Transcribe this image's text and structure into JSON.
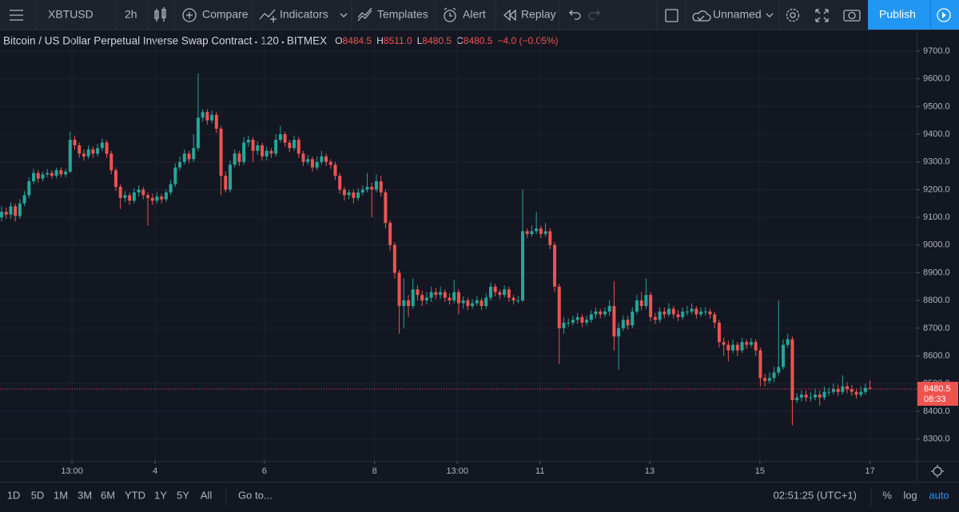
{
  "toolbar": {
    "symbol": "XBTUSD",
    "interval": "2h",
    "compare": "Compare",
    "indicators": "Indicators",
    "templates": "Templates",
    "alert": "Alert",
    "replay": "Replay",
    "layout_name": "Unnamed",
    "publish": "Publish"
  },
  "legend": {
    "name": "Bitcoin / US Dollar Perpetual Inverse Swap Contract",
    "interval": "120",
    "exchange": "BITMEX",
    "ohlc": [
      {
        "letter": "O",
        "value": "8484.5"
      },
      {
        "letter": "H",
        "value": "8511.0"
      },
      {
        "letter": "L",
        "value": "8480.5"
      },
      {
        "letter": "C",
        "value": "8480.5"
      }
    ],
    "change": "−4.0 (−0.05%)"
  },
  "chart_data": {
    "type": "candlestick",
    "up_color": "#26a69a",
    "down_color": "#ef5350",
    "grid": true,
    "open": [
      9100,
      9120,
      9110,
      9140,
      9105,
      9150,
      9180,
      9230,
      9260,
      9240,
      9255,
      9260,
      9250,
      9270,
      9255,
      9265,
      9380,
      9360,
      9330,
      9320,
      9345,
      9330,
      9350,
      9370,
      9330,
      9270,
      9210,
      9170,
      9180,
      9160,
      9190,
      9200,
      9180,
      9170,
      9160,
      9175,
      9165,
      9190,
      9220,
      9280,
      9300,
      9330,
      9310,
      9350,
      9460,
      9480,
      9450,
      9470,
      9420,
      9250,
      9200,
      9290,
      9330,
      9300,
      9370,
      9380,
      9340,
      9360,
      9320,
      9340,
      9330,
      9380,
      9400,
      9370,
      9350,
      9380,
      9330,
      9300,
      9310,
      9280,
      9300,
      9320,
      9300,
      9290,
      9250,
      9200,
      9180,
      9190,
      9170,
      9190,
      9200,
      9210,
      9200,
      9230,
      9190,
      9080,
      9000,
      8900,
      8780,
      8800,
      8780,
      8840,
      8820,
      8800,
      8810,
      8830,
      8820,
      8830,
      8810,
      8800,
      8830,
      8790,
      8800,
      8780,
      8790,
      8800,
      8780,
      8810,
      8850,
      8830,
      8820,
      8840,
      8810,
      8800,
      8800,
      9050,
      9040,
      9050,
      9060,
      9040,
      9050,
      9000,
      8850,
      8700,
      8720,
      8720,
      8730,
      8740,
      8720,
      8730,
      8750,
      8760,
      8750,
      8760,
      8780,
      8670,
      8700,
      8730,
      8710,
      8760,
      8800,
      8780,
      8820,
      8740,
      8730,
      8760,
      8750,
      8770,
      8750,
      8740,
      8760,
      8760,
      8770,
      8750,
      8760,
      8760,
      8750,
      8720,
      8650,
      8640,
      8620,
      8640,
      8620,
      8650,
      8640,
      8650,
      8620,
      8520,
      8510,
      8520,
      8540,
      8560,
      8640,
      8660,
      8440,
      8450,
      8460,
      8450,
      8450,
      8460,
      8450,
      8470,
      8470,
      8480,
      8470,
      8490,
      8480,
      8470,
      8460,
      8470,
      8484.5
    ],
    "high": [
      9140,
      9135,
      9155,
      9150,
      9165,
      9195,
      9245,
      9275,
      9270,
      9265,
      9275,
      9270,
      9280,
      9280,
      9275,
      9410,
      9395,
      9370,
      9345,
      9360,
      9355,
      9365,
      9385,
      9380,
      9340,
      9280,
      9220,
      9195,
      9190,
      9205,
      9215,
      9210,
      9190,
      9185,
      9190,
      9185,
      9200,
      9235,
      9295,
      9320,
      9345,
      9340,
      9400,
      9620,
      9490,
      9490,
      9485,
      9480,
      9430,
      9265,
      9305,
      9345,
      9340,
      9390,
      9395,
      9390,
      9375,
      9370,
      9355,
      9350,
      9400,
      9430,
      9410,
      9380,
      9395,
      9390,
      9340,
      9325,
      9320,
      9320,
      9340,
      9330,
      9310,
      9300,
      9260,
      9210,
      9200,
      9200,
      9205,
      9215,
      9260,
      9225,
      9255,
      9250,
      9200,
      9090,
      9010,
      8910,
      8880,
      8820,
      8880,
      8855,
      8835,
      8830,
      8850,
      8845,
      8850,
      8840,
      8825,
      8875,
      8840,
      8815,
      8810,
      8805,
      8815,
      8810,
      8825,
      8865,
      8860,
      8840,
      8855,
      8850,
      8820,
      8815,
      9200,
      9060,
      9070,
      9120,
      9070,
      9080,
      9060,
      9010,
      8860,
      8740,
      8735,
      8745,
      8755,
      8750,
      8745,
      8765,
      8775,
      8770,
      8775,
      8800,
      8870,
      8720,
      8745,
      8745,
      8775,
      8820,
      8830,
      8880,
      8830,
      8755,
      8775,
      8775,
      8790,
      8780,
      8765,
      8775,
      8780,
      8790,
      8780,
      8775,
      8775,
      8770,
      8760,
      8730,
      8665,
      8655,
      8660,
      8650,
      8665,
      8660,
      8665,
      8660,
      8630,
      8535,
      8540,
      8560,
      8800,
      8660,
      8680,
      8670,
      8465,
      8475,
      8475,
      8470,
      8480,
      8475,
      8490,
      8485,
      8500,
      8495,
      8530,
      8505,
      8495,
      8480,
      8490,
      8500,
      8511
    ],
    "low": [
      9085,
      9095,
      9095,
      9085,
      9095,
      9140,
      9170,
      9220,
      9225,
      9230,
      9245,
      9240,
      9240,
      9245,
      9245,
      9260,
      9345,
      9315,
      9305,
      9310,
      9315,
      9320,
      9340,
      9315,
      9255,
      9195,
      9130,
      9155,
      9145,
      9150,
      9175,
      9165,
      9070,
      9145,
      9150,
      9150,
      9155,
      9180,
      9210,
      9270,
      9290,
      9295,
      9300,
      9340,
      9445,
      9435,
      9440,
      9405,
      9180,
      9190,
      9190,
      9280,
      9285,
      9290,
      9355,
      9300,
      9325,
      9305,
      9305,
      9315,
      9320,
      9370,
      9355,
      9335,
      9340,
      9315,
      9285,
      9290,
      9265,
      9270,
      9290,
      9285,
      9275,
      9235,
      9185,
      9160,
      9165,
      9150,
      9160,
      9180,
      9190,
      9100,
      9190,
      9175,
      9060,
      8980,
      8880,
      8680,
      8700,
      8740,
      8770,
      8800,
      8780,
      8785,
      8795,
      8805,
      8805,
      8795,
      8785,
      8790,
      8750,
      8770,
      8765,
      8770,
      8780,
      8765,
      8770,
      8800,
      8815,
      8805,
      8810,
      8795,
      8785,
      8790,
      8795,
      9025,
      9030,
      9040,
      9025,
      9030,
      8985,
      8830,
      8570,
      8680,
      8705,
      8710,
      8715,
      8705,
      8710,
      8720,
      8735,
      8735,
      8740,
      8745,
      8620,
      8550,
      8690,
      8695,
      8700,
      8750,
      8765,
      8770,
      8725,
      8715,
      8720,
      8735,
      8740,
      8735,
      8725,
      8730,
      8745,
      8750,
      8735,
      8740,
      8745,
      8735,
      8700,
      8630,
      8600,
      8580,
      8610,
      8600,
      8610,
      8625,
      8630,
      8600,
      8490,
      8490,
      8500,
      8505,
      8530,
      8550,
      8630,
      8350,
      8430,
      8435,
      8435,
      8435,
      8440,
      8420,
      8440,
      8455,
      8460,
      8455,
      8460,
      8465,
      8455,
      8445,
      8450,
      8460,
      8480.5
    ],
    "close": [
      9120,
      9110,
      9140,
      9105,
      9150,
      9180,
      9230,
      9260,
      9240,
      9255,
      9260,
      9250,
      9270,
      9255,
      9265,
      9380,
      9360,
      9330,
      9320,
      9345,
      9330,
      9350,
      9370,
      9330,
      9270,
      9210,
      9170,
      9180,
      9160,
      9190,
      9200,
      9180,
      9170,
      9160,
      9175,
      9165,
      9190,
      9220,
      9280,
      9300,
      9330,
      9310,
      9350,
      9460,
      9480,
      9450,
      9470,
      9420,
      9250,
      9200,
      9290,
      9330,
      9300,
      9370,
      9380,
      9340,
      9360,
      9320,
      9340,
      9330,
      9380,
      9400,
      9370,
      9350,
      9380,
      9330,
      9300,
      9310,
      9280,
      9300,
      9320,
      9300,
      9290,
      9250,
      9200,
      9180,
      9190,
      9170,
      9190,
      9200,
      9210,
      9200,
      9230,
      9190,
      9080,
      9000,
      8900,
      8780,
      8800,
      8780,
      8840,
      8820,
      8800,
      8810,
      8830,
      8820,
      8830,
      8810,
      8800,
      8830,
      8790,
      8800,
      8780,
      8790,
      8800,
      8780,
      8810,
      8850,
      8830,
      8820,
      8840,
      8810,
      8800,
      8800,
      9050,
      9040,
      9050,
      9060,
      9040,
      9050,
      9000,
      8850,
      8700,
      8720,
      8720,
      8730,
      8740,
      8720,
      8730,
      8750,
      8760,
      8750,
      8760,
      8780,
      8670,
      8700,
      8730,
      8710,
      8760,
      8800,
      8780,
      8820,
      8740,
      8730,
      8760,
      8750,
      8770,
      8750,
      8740,
      8760,
      8760,
      8770,
      8750,
      8760,
      8760,
      8750,
      8720,
      8650,
      8640,
      8620,
      8640,
      8620,
      8650,
      8640,
      8650,
      8620,
      8520,
      8510,
      8520,
      8540,
      8560,
      8640,
      8660,
      8440,
      8450,
      8460,
      8450,
      8450,
      8460,
      8450,
      8470,
      8470,
      8480,
      8470,
      8490,
      8480,
      8470,
      8460,
      8470,
      8484.5,
      8480.5
    ],
    "xlim": [
      -0.35,
      200.2
    ],
    "xticks": [
      {
        "value": 15.4,
        "label": "13:00"
      },
      {
        "value": 33.6,
        "label": "4"
      },
      {
        "value": 57.5,
        "label": "6"
      },
      {
        "value": 81.6,
        "label": "8"
      },
      {
        "value": 99.7,
        "label": "13:00"
      },
      {
        "value": 117.8,
        "label": "11"
      },
      {
        "value": 141.8,
        "label": "13"
      },
      {
        "value": 165.9,
        "label": "15"
      },
      {
        "value": 190.0,
        "label": "17"
      }
    ],
    "ylim": [
      8221,
      9775
    ],
    "yticks": [
      {
        "value": 8300,
        "label": "8300.0"
      },
      {
        "value": 8400,
        "label": "8400.0"
      },
      {
        "value": 8500,
        "label": "8500.0"
      },
      {
        "value": 8600,
        "label": "8600.0"
      },
      {
        "value": 8700,
        "label": "8700.0"
      },
      {
        "value": 8800,
        "label": "8800.0"
      },
      {
        "value": 8900,
        "label": "8900.0"
      },
      {
        "value": 9000,
        "label": "9000.0"
      },
      {
        "value": 9100,
        "label": "9100.0"
      },
      {
        "value": 9200,
        "label": "9200.0"
      },
      {
        "value": 9300,
        "label": "9300.0"
      },
      {
        "value": 9400,
        "label": "9400.0"
      },
      {
        "value": 9500,
        "label": "9500.0"
      },
      {
        "value": 9600,
        "label": "9600.0"
      },
      {
        "value": 9700,
        "label": "9700.0"
      }
    ],
    "last_price": 8480.5,
    "countdown": "08:33"
  },
  "bottom_bar": {
    "ranges": [
      "1D",
      "5D",
      "1M",
      "3M",
      "6M",
      "YTD",
      "1Y",
      "5Y",
      "All"
    ],
    "goto": "Go to...",
    "clock": "02:51:25 (UTC+1)",
    "percent": "%",
    "log": "log",
    "auto": "auto"
  }
}
